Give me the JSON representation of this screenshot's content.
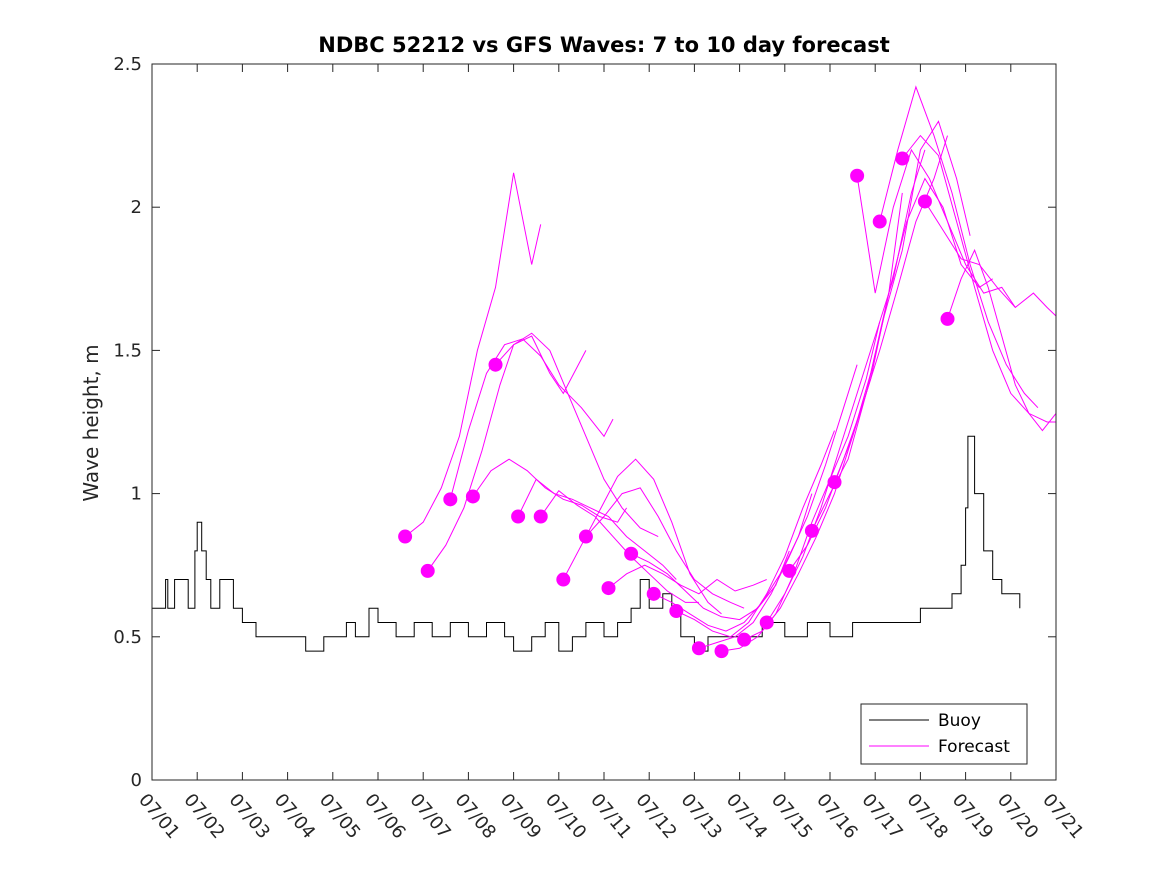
{
  "chart_data": {
    "type": "line",
    "title": "NDBC 52212 vs GFS Waves: 7 to 10 day forecast",
    "xlabel": "",
    "ylabel": "Wave height, m",
    "xlim": [
      "07/01",
      "07/21"
    ],
    "ylim": [
      0,
      2.5
    ],
    "x_tick_labels": [
      "07/01",
      "07/02",
      "07/03",
      "07/04",
      "07/05",
      "07/06",
      "07/07",
      "07/08",
      "07/09",
      "07/10",
      "07/11",
      "07/12",
      "07/13",
      "07/14",
      "07/15",
      "07/16",
      "07/17",
      "07/18",
      "07/19",
      "07/20",
      "07/21"
    ],
    "y_ticks": [
      0,
      0.5,
      1,
      1.5,
      2,
      2.5
    ],
    "y_tick_labels": [
      "0",
      "0.5",
      "1",
      "1.5",
      "2",
      "2.5"
    ],
    "grid": false,
    "legend": {
      "position": "bottom-right",
      "entries": [
        {
          "label": "Buoy",
          "color": "#000000"
        },
        {
          "label": "Forecast",
          "color": "#ff00ff"
        }
      ]
    },
    "buoy": {
      "name": "Buoy",
      "color": "#000000",
      "x_unit": "day of July",
      "x": [
        1.0,
        1.3,
        1.35,
        1.5,
        1.8,
        1.95,
        2.0,
        2.1,
        2.2,
        2.3,
        2.5,
        2.8,
        3.0,
        3.3,
        4.0,
        4.4,
        4.8,
        5.0,
        5.3,
        5.5,
        5.8,
        6.0,
        6.4,
        6.8,
        7.2,
        7.6,
        8.0,
        8.4,
        8.8,
        9.0,
        9.4,
        9.7,
        10.0,
        10.3,
        10.6,
        11.0,
        11.3,
        11.6,
        11.8,
        12.0,
        12.3,
        12.5,
        12.7,
        13.0,
        13.3,
        13.5,
        14.0,
        14.5,
        15.0,
        15.5,
        16.0,
        16.5,
        17.0,
        17.5,
        18.0,
        18.4,
        18.7,
        18.9,
        19.0,
        19.05,
        19.2,
        19.4,
        19.6,
        19.8,
        20.0,
        20.2
      ],
      "y": [
        0.6,
        0.7,
        0.6,
        0.7,
        0.6,
        0.8,
        0.9,
        0.8,
        0.7,
        0.6,
        0.7,
        0.6,
        0.55,
        0.5,
        0.5,
        0.45,
        0.5,
        0.5,
        0.55,
        0.5,
        0.6,
        0.55,
        0.5,
        0.55,
        0.5,
        0.55,
        0.5,
        0.55,
        0.5,
        0.45,
        0.5,
        0.55,
        0.45,
        0.5,
        0.55,
        0.5,
        0.55,
        0.6,
        0.7,
        0.6,
        0.65,
        0.6,
        0.5,
        0.45,
        0.5,
        0.5,
        0.5,
        0.55,
        0.5,
        0.55,
        0.5,
        0.55,
        0.55,
        0.55,
        0.6,
        0.6,
        0.65,
        0.75,
        0.95,
        1.2,
        1.0,
        0.8,
        0.7,
        0.65,
        0.65,
        0.6
      ]
    },
    "forecast_start_points": {
      "name": "Forecast start",
      "color": "#ff00ff",
      "x": [
        6.6,
        7.1,
        7.6,
        8.1,
        8.6,
        9.1,
        9.6,
        10.1,
        10.6,
        11.1,
        11.6,
        12.1,
        12.6,
        13.1,
        13.6,
        14.1,
        14.6,
        15.1,
        15.6,
        16.1,
        16.6,
        17.1,
        17.6,
        18.1,
        18.6
      ],
      "y": [
        0.85,
        0.73,
        0.98,
        0.99,
        1.45,
        0.92,
        0.92,
        0.7,
        0.85,
        0.67,
        0.79,
        0.65,
        0.59,
        0.46,
        0.45,
        0.49,
        0.55,
        0.73,
        0.87,
        1.04,
        2.11,
        1.95,
        2.17,
        2.02,
        1.61
      ]
    },
    "series": [
      {
        "x": [
          6.6,
          7.0,
          7.4,
          7.8,
          8.2,
          8.6,
          9.0,
          9.4,
          9.6
        ],
        "y": [
          0.85,
          0.9,
          1.02,
          1.2,
          1.5,
          1.72,
          2.12,
          1.8,
          1.94
        ]
      },
      {
        "x": [
          7.1,
          7.5,
          7.9,
          8.3,
          8.7,
          9.0,
          9.4,
          9.8,
          10.1,
          10.6
        ],
        "y": [
          0.73,
          0.82,
          0.95,
          1.15,
          1.38,
          1.52,
          1.55,
          1.42,
          1.35,
          1.5
        ]
      },
      {
        "x": [
          7.6,
          8.0,
          8.4,
          8.8,
          9.2,
          9.6,
          10.0,
          10.5,
          11.0,
          11.2
        ],
        "y": [
          0.98,
          1.22,
          1.42,
          1.52,
          1.54,
          1.48,
          1.38,
          1.3,
          1.2,
          1.26
        ]
      },
      {
        "x": [
          8.1,
          8.5,
          8.9,
          9.3,
          9.7,
          10.1,
          10.5,
          10.9,
          11.3,
          11.5
        ],
        "y": [
          0.99,
          1.08,
          1.12,
          1.08,
          1.02,
          0.98,
          0.96,
          0.92,
          0.9,
          0.95
        ]
      },
      {
        "x": [
          8.6,
          9.0,
          9.4,
          9.8,
          10.2,
          10.6,
          11.0,
          11.4,
          11.8,
          12.2
        ],
        "y": [
          1.45,
          1.52,
          1.56,
          1.5,
          1.35,
          1.2,
          1.05,
          0.95,
          0.88,
          0.85
        ]
      },
      {
        "x": [
          9.1,
          9.5,
          9.9,
          10.3,
          10.7,
          11.1,
          11.5,
          11.9,
          12.3,
          12.6
        ],
        "y": [
          0.92,
          1.05,
          1.0,
          0.98,
          0.95,
          0.92,
          0.85,
          0.8,
          0.75,
          0.7
        ]
      },
      {
        "x": [
          9.6,
          10.0,
          10.4,
          10.8,
          11.2,
          11.6,
          12.0,
          12.4,
          12.8,
          13.1
        ],
        "y": [
          0.92,
          1.01,
          0.96,
          0.92,
          0.85,
          0.78,
          0.72,
          0.66,
          0.62,
          0.62
        ]
      },
      {
        "x": [
          10.1,
          10.5,
          10.9,
          11.3,
          11.7,
          12.1,
          12.5,
          12.9,
          13.3,
          13.6
        ],
        "y": [
          0.7,
          0.82,
          0.94,
          1.06,
          1.12,
          1.05,
          0.9,
          0.72,
          0.62,
          0.58
        ]
      },
      {
        "x": [
          10.6,
          11.0,
          11.4,
          11.8,
          12.2,
          12.6,
          13.0,
          13.4,
          13.8,
          14.1
        ],
        "y": [
          0.85,
          0.92,
          1.0,
          1.02,
          0.92,
          0.8,
          0.7,
          0.65,
          0.62,
          0.6
        ]
      },
      {
        "x": [
          11.1,
          11.5,
          11.9,
          12.3,
          12.7,
          13.1,
          13.5,
          13.9,
          14.3,
          14.6
        ],
        "y": [
          0.67,
          0.72,
          0.75,
          0.72,
          0.68,
          0.65,
          0.7,
          0.66,
          0.68,
          0.7
        ]
      },
      {
        "x": [
          11.6,
          12.0,
          12.4,
          12.8,
          13.2,
          13.6,
          14.0,
          14.4,
          14.8,
          15.1
        ],
        "y": [
          0.79,
          0.76,
          0.72,
          0.66,
          0.6,
          0.57,
          0.56,
          0.6,
          0.68,
          0.8
        ]
      },
      {
        "x": [
          12.1,
          12.5,
          12.9,
          13.3,
          13.7,
          14.1,
          14.5,
          14.9,
          15.3,
          15.6
        ],
        "y": [
          0.65,
          0.62,
          0.58,
          0.54,
          0.52,
          0.55,
          0.62,
          0.72,
          0.85,
          1.0
        ]
      },
      {
        "x": [
          12.6,
          13.0,
          13.4,
          13.8,
          14.2,
          14.6,
          15.0,
          15.4,
          15.8,
          16.1
        ],
        "y": [
          0.59,
          0.56,
          0.52,
          0.5,
          0.55,
          0.65,
          0.78,
          0.95,
          1.1,
          1.22
        ]
      },
      {
        "x": [
          13.1,
          13.5,
          13.9,
          14.3,
          14.7,
          15.1,
          15.5,
          15.9,
          16.3,
          16.6
        ],
        "y": [
          0.46,
          0.48,
          0.5,
          0.55,
          0.65,
          0.78,
          0.92,
          1.1,
          1.3,
          1.45
        ]
      },
      {
        "x": [
          13.6,
          14.0,
          14.4,
          14.8,
          15.2,
          15.6,
          16.0,
          16.4,
          16.8,
          17.1
        ],
        "y": [
          0.45,
          0.46,
          0.5,
          0.58,
          0.72,
          0.9,
          1.05,
          1.2,
          1.4,
          1.6
        ]
      },
      {
        "x": [
          14.1,
          14.5,
          14.9,
          15.3,
          15.7,
          16.1,
          16.5,
          16.9,
          17.3,
          17.6
        ],
        "y": [
          0.49,
          0.52,
          0.6,
          0.72,
          0.85,
          1.0,
          1.2,
          1.4,
          1.7,
          2.05
        ]
      },
      {
        "x": [
          14.6,
          15.0,
          15.4,
          15.8,
          16.2,
          16.6,
          17.0,
          17.4,
          17.8,
          18.1
        ],
        "y": [
          0.55,
          0.65,
          0.78,
          0.95,
          1.15,
          1.35,
          1.55,
          1.75,
          2.05,
          2.2
        ]
      },
      {
        "x": [
          15.1,
          15.5,
          15.9,
          16.3,
          16.7,
          17.1,
          17.5,
          17.9,
          18.3,
          18.6
        ],
        "y": [
          0.73,
          0.82,
          0.95,
          1.12,
          1.3,
          1.5,
          1.72,
          1.95,
          2.1,
          2.25
        ]
      },
      {
        "x": [
          15.6,
          16.0,
          16.4,
          16.8,
          17.2,
          17.6,
          18.0,
          18.4,
          18.8,
          19.1
        ],
        "y": [
          0.87,
          1.0,
          1.12,
          1.35,
          1.62,
          1.85,
          2.2,
          2.3,
          2.1,
          1.9
        ]
      },
      {
        "x": [
          16.1,
          16.5,
          16.9,
          17.3,
          17.7,
          18.1,
          18.5,
          18.9,
          19.3,
          19.6
        ],
        "y": [
          1.04,
          1.2,
          1.42,
          1.7,
          1.95,
          2.1,
          2.0,
          1.8,
          1.72,
          1.75
        ]
      },
      {
        "x": [
          16.6,
          17.0,
          17.4,
          17.8,
          18.2,
          18.6,
          19.0,
          19.4,
          19.8,
          20.1
        ],
        "y": [
          2.11,
          1.7,
          2.0,
          2.2,
          2.1,
          1.95,
          1.8,
          1.7,
          1.72,
          1.65
        ]
      },
      {
        "x": [
          17.1,
          17.5,
          17.9,
          18.3,
          18.7,
          19.1,
          19.5,
          19.9,
          20.3,
          20.6
        ],
        "y": [
          1.95,
          2.2,
          2.42,
          2.25,
          2.05,
          1.8,
          1.6,
          1.45,
          1.35,
          1.3
        ]
      },
      {
        "x": [
          17.6,
          18.0,
          18.4,
          18.8,
          19.2,
          19.6,
          20.0,
          20.4,
          20.8,
          21.0
        ],
        "y": [
          2.17,
          2.25,
          2.18,
          1.95,
          1.72,
          1.5,
          1.35,
          1.28,
          1.25,
          1.25
        ]
      },
      {
        "x": [
          18.1,
          18.5,
          18.9,
          19.3,
          19.7,
          20.1,
          20.5,
          20.8,
          21.0
        ],
        "y": [
          2.02,
          1.92,
          1.82,
          1.8,
          1.72,
          1.65,
          1.7,
          1.65,
          1.62
        ]
      },
      {
        "x": [
          18.6,
          18.9,
          19.2,
          19.5,
          19.8,
          20.1,
          20.4,
          20.7,
          21.0
        ],
        "y": [
          1.61,
          1.75,
          1.85,
          1.72,
          1.55,
          1.38,
          1.28,
          1.22,
          1.28
        ]
      }
    ]
  }
}
